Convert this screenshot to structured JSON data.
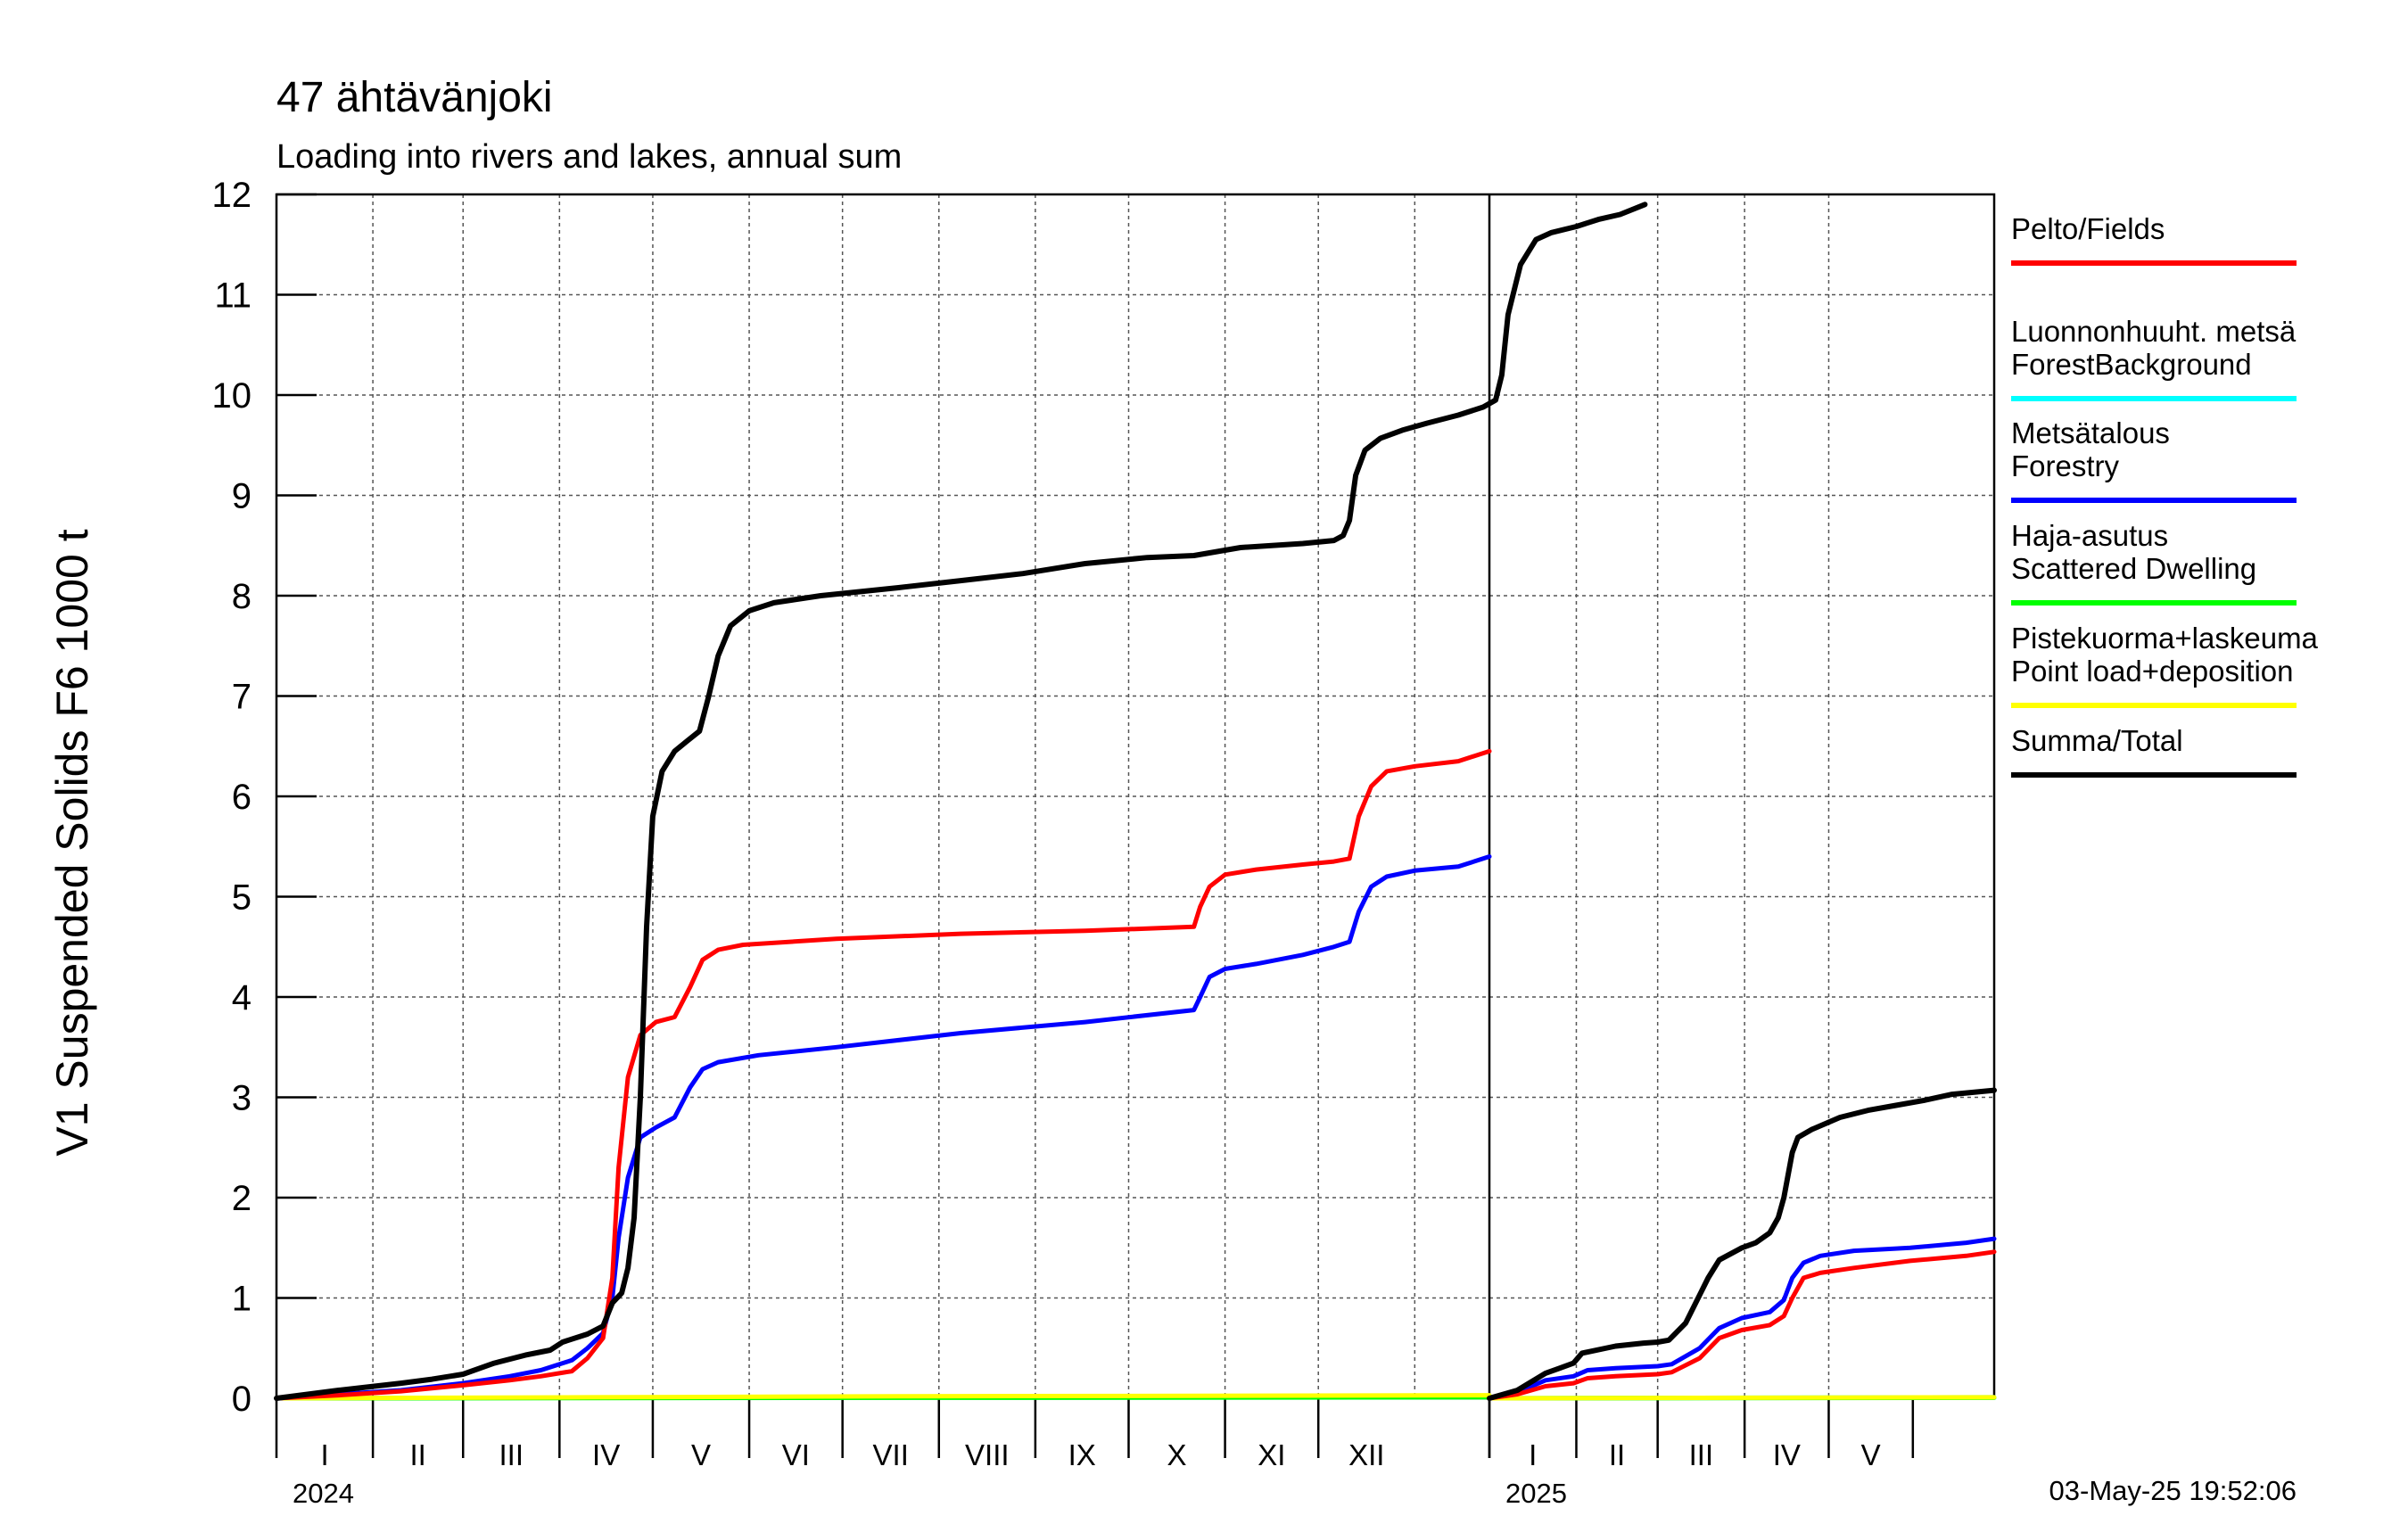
{
  "chart_data": {
    "type": "line",
    "title": "47 ähtävänjoki",
    "subtitle": "Loading into rivers and lakes, annual sum",
    "ylabel": "V1 Suspended Solids F6 1000 t",
    "ylim": [
      0,
      12
    ],
    "yticks": [
      "0",
      "1",
      "2",
      "3",
      "4",
      "5",
      "6",
      "7",
      "8",
      "9",
      "10",
      "11",
      "12"
    ],
    "grid": true,
    "legend_position": "right",
    "timestamp": "03-May-25 19:52:06",
    "years": [
      "2024",
      "2025"
    ],
    "month_labels_2024": [
      "I",
      "II",
      "III",
      "IV",
      "V",
      "VI",
      "VII",
      "VIII",
      "IX",
      "X",
      "XI",
      "XII"
    ],
    "month_labels_2025": [
      "I",
      "II",
      "III",
      "IV",
      "V"
    ],
    "x_unit": "days since 1 January of each year",
    "series": [
      {
        "name": "Pelto/Fields",
        "color": "#ff0000",
        "year_2024": [
          [
            0,
            0
          ],
          [
            20,
            0.03
          ],
          [
            40,
            0.07
          ],
          [
            60,
            0.13
          ],
          [
            75,
            0.18
          ],
          [
            85,
            0.22
          ],
          [
            95,
            0.27
          ],
          [
            100,
            0.4
          ],
          [
            105,
            0.6
          ],
          [
            108,
            1.2
          ],
          [
            110,
            2.3
          ],
          [
            113,
            3.2
          ],
          [
            117,
            3.62
          ],
          [
            122,
            3.75
          ],
          [
            128,
            3.8
          ],
          [
            133,
            4.1
          ],
          [
            137,
            4.37
          ],
          [
            142,
            4.47
          ],
          [
            150,
            4.52
          ],
          [
            180,
            4.58
          ],
          [
            220,
            4.63
          ],
          [
            260,
            4.66
          ],
          [
            295,
            4.7
          ],
          [
            297,
            4.9
          ],
          [
            300,
            5.1
          ],
          [
            305,
            5.22
          ],
          [
            315,
            5.27
          ],
          [
            330,
            5.32
          ],
          [
            340,
            5.35
          ],
          [
            345,
            5.38
          ],
          [
            348,
            5.8
          ],
          [
            352,
            6.1
          ],
          [
            357,
            6.25
          ],
          [
            366,
            6.3
          ],
          [
            380,
            6.35
          ],
          [
            390,
            6.45
          ]
        ],
        "year_2025": [
          [
            0,
            0
          ],
          [
            10,
            0.04
          ],
          [
            20,
            0.12
          ],
          [
            30,
            0.15
          ],
          [
            35,
            0.2
          ],
          [
            45,
            0.22
          ],
          [
            60,
            0.24
          ],
          [
            65,
            0.26
          ],
          [
            75,
            0.4
          ],
          [
            82,
            0.6
          ],
          [
            90,
            0.68
          ],
          [
            100,
            0.73
          ],
          [
            105,
            0.82
          ],
          [
            108,
            1.0
          ],
          [
            112,
            1.2
          ],
          [
            118,
            1.25
          ],
          [
            130,
            1.3
          ],
          [
            150,
            1.37
          ],
          [
            170,
            1.42
          ],
          [
            180,
            1.46
          ]
        ]
      },
      {
        "name": "Luonnonhuuht. metsä ForestBackground",
        "color": "#00ffff",
        "year_2024": [
          [
            0,
            0
          ],
          [
            390,
            0.02
          ]
        ],
        "year_2025": [
          [
            0,
            0
          ],
          [
            180,
            0.01
          ]
        ]
      },
      {
        "name": "Metsätalous Forestry",
        "color": "#0000ff",
        "year_2024": [
          [
            0,
            0
          ],
          [
            20,
            0.04
          ],
          [
            40,
            0.08
          ],
          [
            60,
            0.15
          ],
          [
            75,
            0.22
          ],
          [
            85,
            0.28
          ],
          [
            95,
            0.38
          ],
          [
            100,
            0.5
          ],
          [
            105,
            0.65
          ],
          [
            108,
            1.0
          ],
          [
            110,
            1.6
          ],
          [
            113,
            2.2
          ],
          [
            117,
            2.6
          ],
          [
            122,
            2.7
          ],
          [
            128,
            2.8
          ],
          [
            133,
            3.1
          ],
          [
            137,
            3.28
          ],
          [
            142,
            3.35
          ],
          [
            155,
            3.42
          ],
          [
            180,
            3.5
          ],
          [
            220,
            3.64
          ],
          [
            260,
            3.75
          ],
          [
            295,
            3.87
          ],
          [
            297,
            4.0
          ],
          [
            300,
            4.2
          ],
          [
            305,
            4.28
          ],
          [
            315,
            4.33
          ],
          [
            330,
            4.42
          ],
          [
            340,
            4.5
          ],
          [
            345,
            4.55
          ],
          [
            348,
            4.85
          ],
          [
            352,
            5.1
          ],
          [
            357,
            5.2
          ],
          [
            366,
            5.26
          ],
          [
            380,
            5.3
          ],
          [
            390,
            5.4
          ]
        ],
        "year_2025": [
          [
            0,
            0
          ],
          [
            10,
            0.06
          ],
          [
            20,
            0.18
          ],
          [
            30,
            0.22
          ],
          [
            35,
            0.28
          ],
          [
            45,
            0.3
          ],
          [
            60,
            0.32
          ],
          [
            65,
            0.34
          ],
          [
            75,
            0.5
          ],
          [
            82,
            0.7
          ],
          [
            90,
            0.8
          ],
          [
            100,
            0.86
          ],
          [
            105,
            0.98
          ],
          [
            108,
            1.2
          ],
          [
            112,
            1.35
          ],
          [
            118,
            1.42
          ],
          [
            130,
            1.47
          ],
          [
            150,
            1.5
          ],
          [
            170,
            1.55
          ],
          [
            180,
            1.59
          ]
        ]
      },
      {
        "name": "Haja-asutus Scattered Dwelling",
        "color": "#00ff00",
        "year_2024": [
          [
            0,
            0
          ],
          [
            390,
            0.01
          ]
        ],
        "year_2025": [
          [
            0,
            0
          ],
          [
            180,
            0.005
          ]
        ]
      },
      {
        "name": "Pistekuorma+laskeuma Point load+deposition",
        "color": "#ffff00",
        "year_2024": [
          [
            0,
            0
          ],
          [
            100,
            0.01
          ],
          [
            200,
            0.02
          ],
          [
            390,
            0.03
          ]
        ],
        "year_2025": [
          [
            0,
            0
          ],
          [
            180,
            0.01
          ]
        ]
      },
      {
        "name": "Summa/Total",
        "color": "#000000",
        "year_2024": [
          [
            0,
            0
          ],
          [
            20,
            0.08
          ],
          [
            40,
            0.15
          ],
          [
            50,
            0.19
          ],
          [
            60,
            0.24
          ],
          [
            70,
            0.35
          ],
          [
            80,
            0.43
          ],
          [
            88,
            0.48
          ],
          [
            92,
            0.56
          ],
          [
            100,
            0.64
          ],
          [
            105,
            0.72
          ],
          [
            108,
            0.95
          ],
          [
            111,
            1.05
          ],
          [
            113,
            1.3
          ],
          [
            115,
            1.8
          ],
          [
            117,
            3.0
          ],
          [
            119,
            4.7
          ],
          [
            121,
            5.8
          ],
          [
            124,
            6.25
          ],
          [
            128,
            6.45
          ],
          [
            132,
            6.55
          ],
          [
            136,
            6.65
          ],
          [
            139,
            7.0
          ],
          [
            142,
            7.4
          ],
          [
            146,
            7.7
          ],
          [
            152,
            7.85
          ],
          [
            160,
            7.93
          ],
          [
            175,
            8.0
          ],
          [
            200,
            8.08
          ],
          [
            220,
            8.15
          ],
          [
            240,
            8.22
          ],
          [
            260,
            8.32
          ],
          [
            280,
            8.38
          ],
          [
            295,
            8.4
          ],
          [
            310,
            8.48
          ],
          [
            330,
            8.52
          ],
          [
            340,
            8.55
          ],
          [
            343,
            8.6
          ],
          [
            345,
            8.75
          ],
          [
            347,
            9.2
          ],
          [
            350,
            9.45
          ],
          [
            355,
            9.57
          ],
          [
            362,
            9.65
          ],
          [
            370,
            9.72
          ],
          [
            380,
            9.8
          ],
          [
            388,
            9.88
          ],
          [
            392,
            9.95
          ],
          [
            394,
            10.2
          ],
          [
            396,
            10.8
          ],
          [
            400,
            11.3
          ],
          [
            405,
            11.55
          ],
          [
            410,
            11.62
          ],
          [
            418,
            11.68
          ],
          [
            425,
            11.75
          ],
          [
            432,
            11.8
          ],
          [
            440,
            11.9
          ]
        ],
        "year_2025": [
          [
            0,
            0
          ],
          [
            10,
            0.08
          ],
          [
            20,
            0.25
          ],
          [
            25,
            0.3
          ],
          [
            30,
            0.35
          ],
          [
            33,
            0.45
          ],
          [
            45,
            0.52
          ],
          [
            55,
            0.55
          ],
          [
            60,
            0.56
          ],
          [
            64,
            0.58
          ],
          [
            70,
            0.75
          ],
          [
            78,
            1.2
          ],
          [
            82,
            1.38
          ],
          [
            90,
            1.5
          ],
          [
            95,
            1.55
          ],
          [
            100,
            1.65
          ],
          [
            103,
            1.8
          ],
          [
            105,
            2.0
          ],
          [
            108,
            2.45
          ],
          [
            110,
            2.6
          ],
          [
            115,
            2.68
          ],
          [
            125,
            2.8
          ],
          [
            135,
            2.87
          ],
          [
            145,
            2.92
          ],
          [
            155,
            2.97
          ],
          [
            165,
            3.03
          ],
          [
            180,
            3.07
          ]
        ]
      }
    ]
  }
}
